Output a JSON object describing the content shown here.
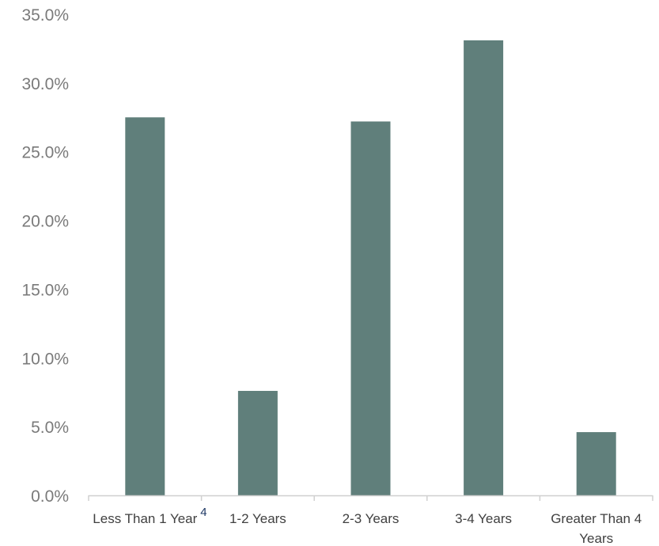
{
  "chart_data": {
    "type": "bar",
    "categories": [
      [
        "Less Than 1 Year"
      ],
      [
        "1-2 Years"
      ],
      [
        "2-3 Years"
      ],
      [
        "3-4 Years"
      ],
      [
        "Greater Than 4",
        "Years"
      ]
    ],
    "values": [
      27.5,
      7.6,
      27.2,
      33.1,
      4.6
    ],
    "ylim": [
      0,
      35
    ],
    "ytick_labels": [
      "0.0%",
      "5.0%",
      "10.0%",
      "15.0%",
      "20.0%",
      "25.0%",
      "30.0%",
      "35.0%"
    ],
    "grid": false,
    "bar_color": "#607f7b",
    "axis_color": "#d0d0d0",
    "annotations": [
      {
        "text": "4",
        "attached_to_category": 0,
        "style": "superscript"
      }
    ]
  }
}
